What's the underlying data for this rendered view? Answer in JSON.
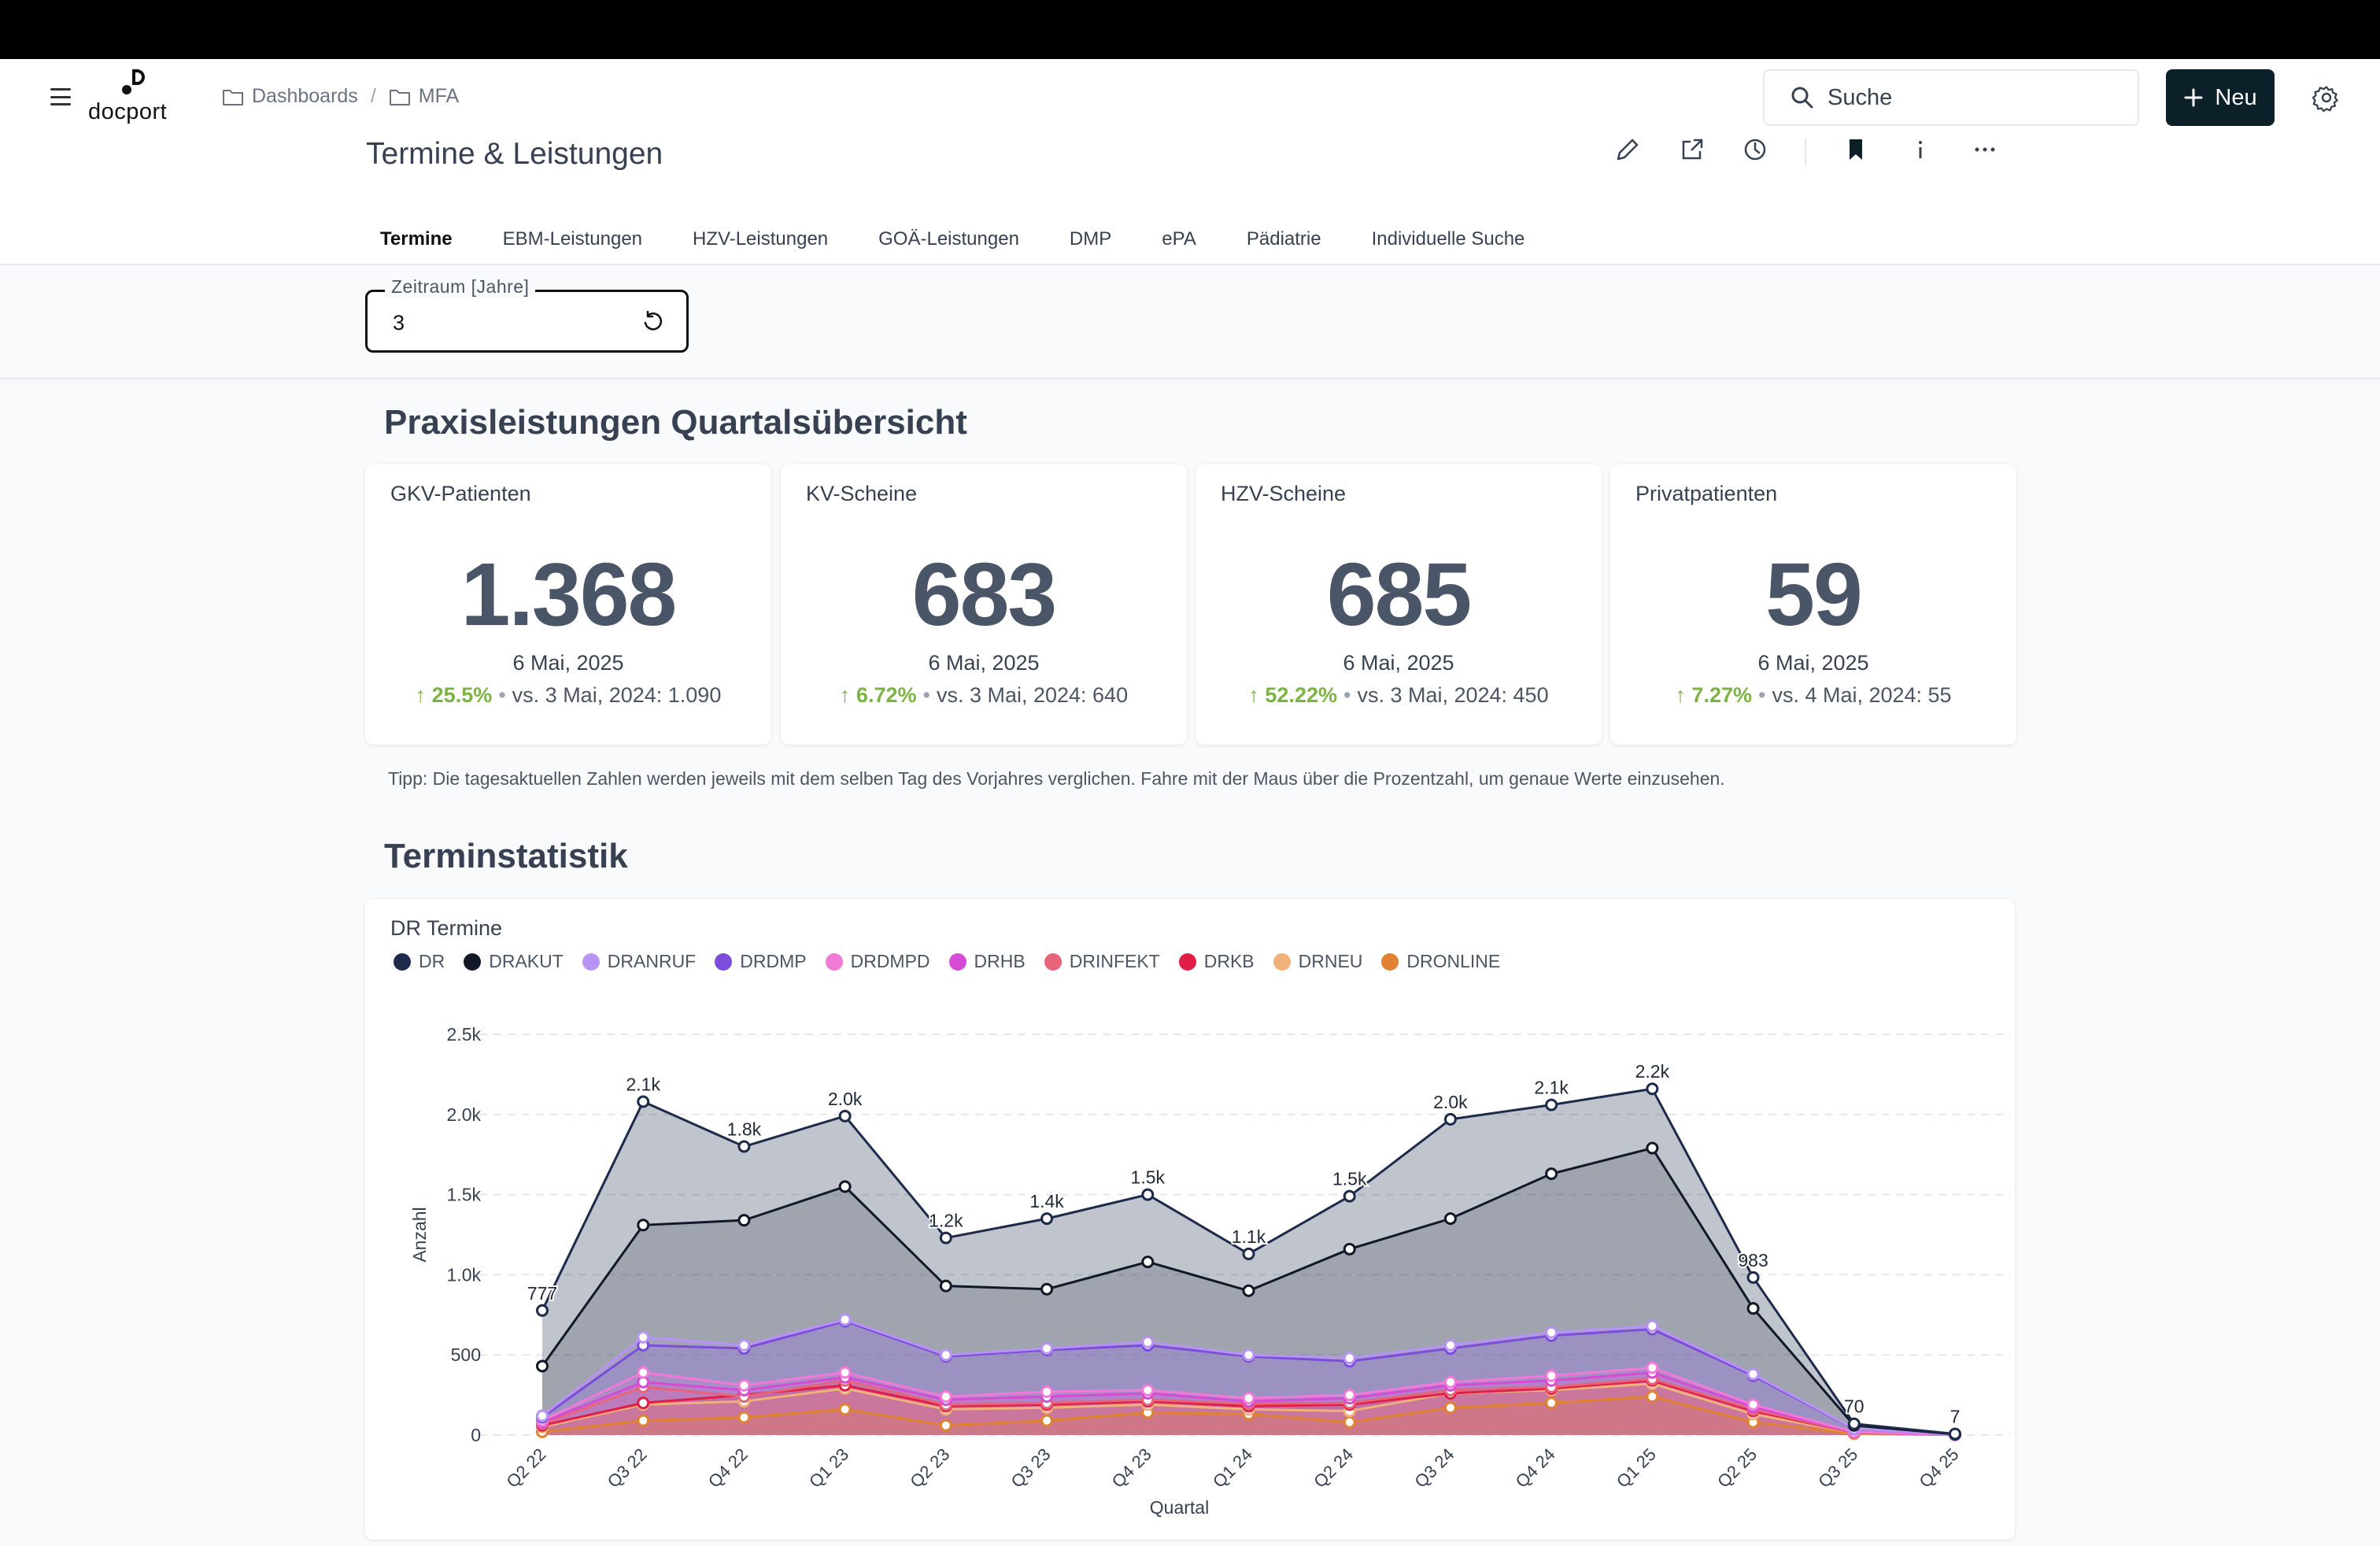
{
  "app": {
    "logo_text": "docport",
    "breadcrumb": [
      "Dashboards",
      "MFA"
    ],
    "search_placeholder": "Suche",
    "new_button": "Neu"
  },
  "page": {
    "title": "Termine & Leistungen",
    "tabs": [
      "Termine",
      "EBM-Leistungen",
      "HZV-Leistungen",
      "GOÄ-Leistungen",
      "DMP",
      "ePA",
      "Pädiatrie",
      "Individuelle Suche"
    ],
    "active_tab": 0
  },
  "filter": {
    "label": "Zeitraum [Jahre]",
    "value": "3"
  },
  "overview": {
    "title": "Praxisleistungen Quartalsübersicht",
    "cards": [
      {
        "title": "GKV-Patienten",
        "value": "1.368",
        "date": "6 Mai, 2025",
        "change": "25.5%",
        "compare": "vs. 3 Mai, 2024: 1.090"
      },
      {
        "title": "KV-Scheine",
        "value": "683",
        "date": "6 Mai, 2025",
        "change": "6.72%",
        "compare": "vs. 3 Mai, 2024: 640"
      },
      {
        "title": "HZV-Scheine",
        "value": "685",
        "date": "6 Mai, 2025",
        "change": "52.22%",
        "compare": "vs. 3 Mai, 2024: 450"
      },
      {
        "title": "Privatpatienten",
        "value": "59",
        "date": "6 Mai, 2025",
        "change": "7.27%",
        "compare": "vs. 4 Mai, 2024: 55"
      }
    ],
    "tip": "Tipp: Die tagesaktuellen Zahlen werden jeweils mit dem selben Tag des Vorjahres verglichen. Fahre mit der Maus über die Prozentzahl, um genaue Werte einzusehen."
  },
  "stats": {
    "title": "Terminstatistik"
  },
  "colors": {
    "accent": "#0b2029",
    "positive": "#7cb342"
  },
  "chart_data": {
    "type": "area",
    "title": "DR Termine",
    "xlabel": "Quartal",
    "ylabel": "Anzahl",
    "ylim": [
      0,
      2500
    ],
    "yticks": [
      0,
      500,
      1000,
      1500,
      2000,
      2500
    ],
    "ytick_labels": [
      "0",
      "500",
      "1.0k",
      "1.5k",
      "2.0k",
      "2.5k"
    ],
    "categories": [
      "Q2 22",
      "Q3 22",
      "Q4 22",
      "Q1 23",
      "Q2 23",
      "Q3 23",
      "Q4 23",
      "Q1 24",
      "Q2 24",
      "Q3 24",
      "Q4 24",
      "Q1 25",
      "Q2 25",
      "Q3 25",
      "Q4 25"
    ],
    "grid": true,
    "legend_position": "top-left",
    "series": [
      {
        "name": "DR",
        "color": "#1e2a4a",
        "values": [
          777,
          2080,
          1800,
          1990,
          1230,
          1350,
          1500,
          1130,
          1490,
          1970,
          2060,
          2160,
          983,
          70,
          7
        ],
        "labels": [
          "777",
          "2.1k",
          "1.8k",
          "2.0k",
          "1.2k",
          "1.4k",
          "1.5k",
          "1.1k",
          "1.5k",
          "2.0k",
          "2.1k",
          "2.2k",
          "983",
          "70",
          "7"
        ]
      },
      {
        "name": "DRAKUT",
        "color": "#111827",
        "values": [
          430,
          1310,
          1340,
          1550,
          930,
          910,
          1080,
          900,
          1160,
          1350,
          1630,
          1790,
          790,
          60,
          5
        ]
      },
      {
        "name": "DRANRUF",
        "color": "#b794f4",
        "values": [
          120,
          610,
          560,
          720,
          500,
          540,
          580,
          500,
          480,
          560,
          640,
          680,
          380,
          40,
          2
        ]
      },
      {
        "name": "DRDMP",
        "color": "#7c4ddb",
        "values": [
          110,
          560,
          540,
          710,
          490,
          530,
          560,
          490,
          460,
          540,
          620,
          660,
          370,
          38,
          2
        ]
      },
      {
        "name": "DRDMPD",
        "color": "#f07ad8",
        "values": [
          90,
          390,
          310,
          390,
          240,
          270,
          280,
          230,
          250,
          330,
          370,
          420,
          190,
          20,
          1
        ]
      },
      {
        "name": "DRHB",
        "color": "#d64bd6",
        "values": [
          80,
          330,
          280,
          360,
          220,
          240,
          260,
          210,
          230,
          310,
          340,
          390,
          175,
          18,
          1
        ]
      },
      {
        "name": "DRINFEKT",
        "color": "#e8647a",
        "values": [
          70,
          300,
          240,
          340,
          190,
          200,
          220,
          195,
          200,
          280,
          300,
          350,
          160,
          15,
          1
        ]
      },
      {
        "name": "DRKB",
        "color": "#e11d48",
        "values": [
          60,
          200,
          250,
          310,
          180,
          190,
          210,
          180,
          190,
          260,
          290,
          340,
          150,
          14,
          1
        ]
      },
      {
        "name": "DRNEU",
        "color": "#f0b27a",
        "values": [
          50,
          190,
          210,
          290,
          160,
          170,
          190,
          160,
          150,
          260,
          280,
          320,
          130,
          12,
          1
        ]
      },
      {
        "name": "DRONLINE",
        "color": "#e0822f",
        "values": [
          20,
          90,
          110,
          160,
          60,
          90,
          140,
          130,
          80,
          170,
          200,
          240,
          80,
          8,
          1
        ]
      }
    ]
  }
}
